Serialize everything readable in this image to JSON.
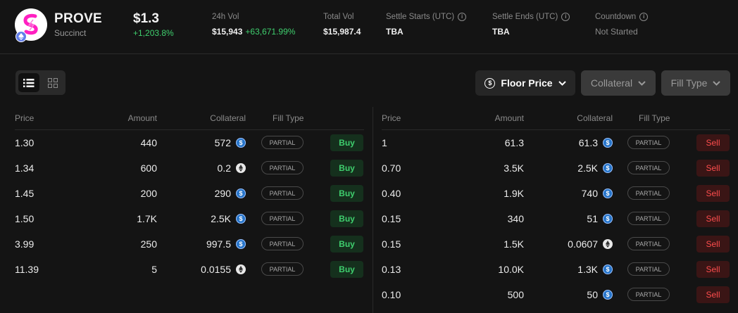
{
  "token": {
    "symbol": "PROVE",
    "name": "Succinct",
    "price": "$1.3",
    "price_change": "+1,203.8%"
  },
  "stats": {
    "vol24h": {
      "label": "24h Vol",
      "value": "$15,943",
      "change": "+63,671.99%"
    },
    "total_vol": {
      "label": "Total Vol",
      "value": "$15,987.4"
    },
    "settle_starts": {
      "label": "Settle Starts (UTC)",
      "value": "TBA"
    },
    "settle_ends": {
      "label": "Settle Ends (UTC)",
      "value": "TBA"
    },
    "countdown": {
      "label": "Countdown",
      "value": "Not Started"
    }
  },
  "filters": {
    "floor_price": "Floor Price",
    "collateral": "Collateral",
    "fill_type": "Fill Type"
  },
  "buy_book": {
    "headers": {
      "price": "Price",
      "amount": "Amount",
      "collateral": "Collateral",
      "fill_type": "Fill Type"
    },
    "rows": [
      {
        "price": "1.30",
        "amount": "440",
        "collateral": "572",
        "token": "usdc",
        "fill": "PARTIAL",
        "action": "Buy"
      },
      {
        "price": "1.34",
        "amount": "600",
        "collateral": "0.2",
        "token": "eth",
        "fill": "PARTIAL",
        "action": "Buy"
      },
      {
        "price": "1.45",
        "amount": "200",
        "collateral": "290",
        "token": "usdc",
        "fill": "PARTIAL",
        "action": "Buy"
      },
      {
        "price": "1.50",
        "amount": "1.7K",
        "collateral": "2.5K",
        "token": "usdc",
        "fill": "PARTIAL",
        "action": "Buy"
      },
      {
        "price": "3.99",
        "amount": "250",
        "collateral": "997.5",
        "token": "usdc",
        "fill": "PARTIAL",
        "action": "Buy"
      },
      {
        "price": "11.39",
        "amount": "5",
        "collateral": "0.0155",
        "token": "eth",
        "fill": "PARTIAL",
        "action": "Buy"
      }
    ]
  },
  "sell_book": {
    "headers": {
      "price": "Price",
      "amount": "Amount",
      "collateral": "Collateral",
      "fill_type": "Fill Type"
    },
    "rows": [
      {
        "price": "1",
        "amount": "61.3",
        "collateral": "61.3",
        "token": "usdc",
        "fill": "PARTIAL",
        "action": "Sell"
      },
      {
        "price": "0.70",
        "amount": "3.5K",
        "collateral": "2.5K",
        "token": "usdc",
        "fill": "PARTIAL",
        "action": "Sell"
      },
      {
        "price": "0.40",
        "amount": "1.9K",
        "collateral": "740",
        "token": "usdc",
        "fill": "PARTIAL",
        "action": "Sell"
      },
      {
        "price": "0.15",
        "amount": "340",
        "collateral": "51",
        "token": "usdc",
        "fill": "PARTIAL",
        "action": "Sell"
      },
      {
        "price": "0.15",
        "amount": "1.5K",
        "collateral": "0.0607",
        "token": "eth",
        "fill": "PARTIAL",
        "action": "Sell"
      },
      {
        "price": "0.13",
        "amount": "10.0K",
        "collateral": "1.3K",
        "token": "usdc",
        "fill": "PARTIAL",
        "action": "Sell"
      },
      {
        "price": "0.10",
        "amount": "500",
        "collateral": "50",
        "token": "usdc",
        "fill": "PARTIAL",
        "action": "Sell"
      }
    ]
  },
  "icons": {
    "logo": "succinct-logo-icon",
    "chain": "ethereum-chain-icon",
    "info": "info-icon",
    "list_view": "list-view-icon",
    "grid_view": "grid-view-icon",
    "dollar": "dollar-circle-icon",
    "chevron": "chevron-down-icon",
    "usdc": "usdc-icon",
    "eth": "eth-icon"
  },
  "colors": {
    "positive": "#3fcf6e",
    "negative": "#ff4d4d",
    "logo_accent": "#ff1fc1",
    "usdc": "#2775ca"
  }
}
